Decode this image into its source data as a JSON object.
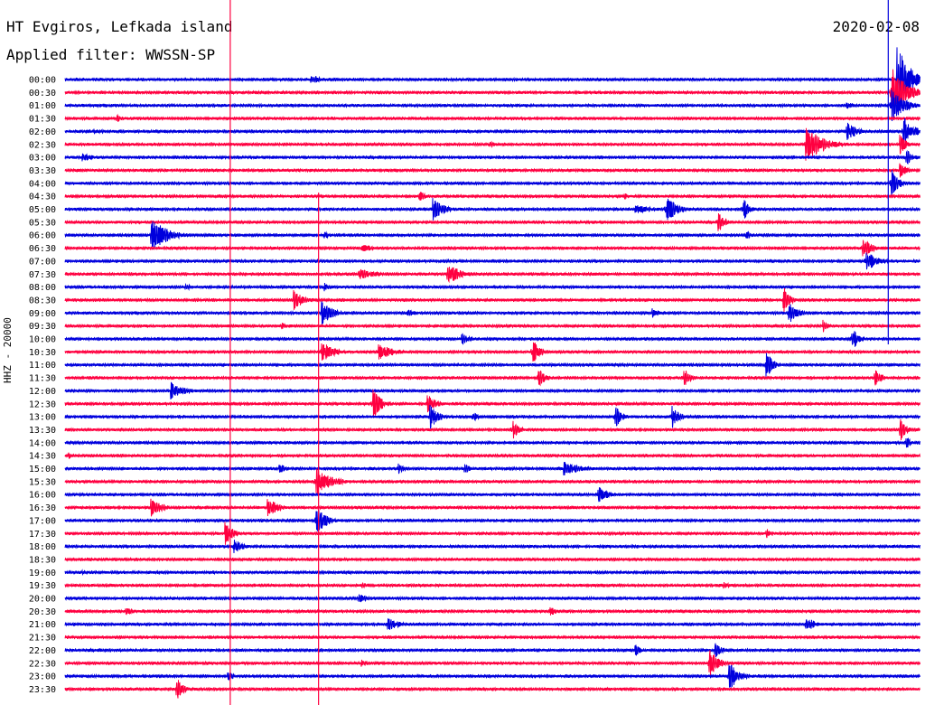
{
  "header": {
    "title": "HT Evgiros, Lefkada island",
    "subtitle": "Applied filter: WWSSN-SP",
    "date": "2020-02-08",
    "channel": "HHZ - 20000"
  },
  "colors": {
    "even_trace": "#0000dd",
    "odd_trace": "#ff0040"
  },
  "chart_data": {
    "type": "line",
    "title": "HT Evgiros, Lefkada island",
    "subtitle": "Applied filter: WWSSN-SP",
    "date": "2020-02-08",
    "ylabel": "HHZ - 20000",
    "row_labels": [
      "00:00",
      "00:30",
      "01:00",
      "01:30",
      "02:00",
      "02:30",
      "03:00",
      "03:30",
      "04:00",
      "04:30",
      "05:00",
      "05:30",
      "06:00",
      "06:30",
      "07:00",
      "07:30",
      "08:00",
      "08:30",
      "09:00",
      "09:30",
      "10:00",
      "10:30",
      "11:00",
      "11:30",
      "12:00",
      "12:30",
      "13:00",
      "13:30",
      "14:00",
      "14:30",
      "15:00",
      "15:30",
      "16:00",
      "16:30",
      "17:00",
      "17:30",
      "18:00",
      "18:30",
      "19:00",
      "19:30",
      "20:00",
      "20:30",
      "21:00",
      "21:30",
      "22:00",
      "22:30",
      "23:00",
      "23:30"
    ],
    "row_minutes": 30,
    "x_range_minutes": [
      0,
      30
    ],
    "grid": false,
    "events": [
      {
        "row": 0,
        "minute": 8.6,
        "amp": 6,
        "dur": 1
      },
      {
        "row": 0,
        "minute": 29.2,
        "amp": 40,
        "dur": 1.2
      },
      {
        "row": 1,
        "minute": 29.0,
        "amp": 30,
        "dur": 1.4
      },
      {
        "row": 2,
        "minute": 27.4,
        "amp": 4,
        "dur": 1.2
      },
      {
        "row": 2,
        "minute": 29.0,
        "amp": 20,
        "dur": 1.2
      },
      {
        "row": 3,
        "minute": 1.8,
        "amp": 5,
        "dur": 0.5
      },
      {
        "row": 4,
        "minute": 1.0,
        "amp": 3,
        "dur": 2
      },
      {
        "row": 4,
        "minute": 27.4,
        "amp": 12,
        "dur": 1
      },
      {
        "row": 4,
        "minute": 29.4,
        "amp": 18,
        "dur": 1
      },
      {
        "row": 5,
        "minute": 14.9,
        "amp": 5,
        "dur": 0.5
      },
      {
        "row": 5,
        "minute": 26.0,
        "amp": 22,
        "dur": 1.5
      },
      {
        "row": 5,
        "minute": 29.3,
        "amp": 12,
        "dur": 0.6
      },
      {
        "row": 6,
        "minute": 0.6,
        "amp": 5,
        "dur": 1.2
      },
      {
        "row": 6,
        "minute": 29.5,
        "amp": 10,
        "dur": 0.8
      },
      {
        "row": 7,
        "minute": 29.3,
        "amp": 8,
        "dur": 0.8
      },
      {
        "row": 8,
        "minute": 29.0,
        "amp": 20,
        "dur": 0.6
      },
      {
        "row": 9,
        "minute": 12.4,
        "amp": 8,
        "dur": 0.6
      },
      {
        "row": 9,
        "minute": 19.6,
        "amp": 5,
        "dur": 0.4
      },
      {
        "row": 10,
        "minute": 12.9,
        "amp": 14,
        "dur": 1
      },
      {
        "row": 10,
        "minute": 20.0,
        "amp": 5,
        "dur": 2
      },
      {
        "row": 10,
        "minute": 21.1,
        "amp": 16,
        "dur": 1
      },
      {
        "row": 10,
        "minute": 23.8,
        "amp": 14,
        "dur": 0.6
      },
      {
        "row": 11,
        "minute": 22.9,
        "amp": 14,
        "dur": 0.6
      },
      {
        "row": 12,
        "minute": 3.0,
        "amp": 20,
        "dur": 1.6
      },
      {
        "row": 12,
        "minute": 9.1,
        "amp": 5,
        "dur": 0.6
      },
      {
        "row": 12,
        "minute": 23.9,
        "amp": 5,
        "dur": 0.6
      },
      {
        "row": 13,
        "minute": 10.4,
        "amp": 4,
        "dur": 2
      },
      {
        "row": 13,
        "minute": 28.0,
        "amp": 12,
        "dur": 0.8
      },
      {
        "row": 14,
        "minute": 28.1,
        "amp": 12,
        "dur": 1.2
      },
      {
        "row": 15,
        "minute": 10.3,
        "amp": 6,
        "dur": 2
      },
      {
        "row": 15,
        "minute": 13.4,
        "amp": 14,
        "dur": 1.2
      },
      {
        "row": 16,
        "minute": 4.2,
        "amp": 5,
        "dur": 0.6
      },
      {
        "row": 16,
        "minute": 9.1,
        "amp": 5,
        "dur": 0.6
      },
      {
        "row": 17,
        "minute": 8.0,
        "amp": 12,
        "dur": 1
      },
      {
        "row": 17,
        "minute": 25.2,
        "amp": 16,
        "dur": 0.6
      },
      {
        "row": 18,
        "minute": 9.0,
        "amp": 14,
        "dur": 1
      },
      {
        "row": 18,
        "minute": 12.0,
        "amp": 6,
        "dur": 0.8
      },
      {
        "row": 18,
        "minute": 20.6,
        "amp": 6,
        "dur": 0.8
      },
      {
        "row": 18,
        "minute": 25.4,
        "amp": 14,
        "dur": 0.8
      },
      {
        "row": 19,
        "minute": 7.6,
        "amp": 4,
        "dur": 0.6
      },
      {
        "row": 19,
        "minute": 26.6,
        "amp": 8,
        "dur": 0.6
      },
      {
        "row": 20,
        "minute": 13.9,
        "amp": 8,
        "dur": 0.8
      },
      {
        "row": 20,
        "minute": 27.6,
        "amp": 16,
        "dur": 0.6
      },
      {
        "row": 21,
        "minute": 9.0,
        "amp": 12,
        "dur": 1.2
      },
      {
        "row": 21,
        "minute": 11.0,
        "amp": 10,
        "dur": 1.4
      },
      {
        "row": 21,
        "minute": 16.4,
        "amp": 16,
        "dur": 0.6
      },
      {
        "row": 22,
        "minute": 24.6,
        "amp": 18,
        "dur": 0.6
      },
      {
        "row": 23,
        "minute": 16.6,
        "amp": 12,
        "dur": 0.6
      },
      {
        "row": 23,
        "minute": 21.7,
        "amp": 12,
        "dur": 0.6
      },
      {
        "row": 23,
        "minute": 28.4,
        "amp": 12,
        "dur": 0.6
      },
      {
        "row": 24,
        "minute": 3.7,
        "amp": 10,
        "dur": 1.4
      },
      {
        "row": 25,
        "minute": 10.8,
        "amp": 18,
        "dur": 0.8
      },
      {
        "row": 25,
        "minute": 12.7,
        "amp": 12,
        "dur": 0.8
      },
      {
        "row": 26,
        "minute": 12.8,
        "amp": 14,
        "dur": 0.8
      },
      {
        "row": 26,
        "minute": 14.3,
        "amp": 6,
        "dur": 0.6
      },
      {
        "row": 26,
        "minute": 19.3,
        "amp": 14,
        "dur": 0.6
      },
      {
        "row": 26,
        "minute": 21.3,
        "amp": 14,
        "dur": 0.6
      },
      {
        "row": 27,
        "minute": 15.7,
        "amp": 12,
        "dur": 0.6
      },
      {
        "row": 27,
        "minute": 29.3,
        "amp": 14,
        "dur": 0.6
      },
      {
        "row": 28,
        "minute": 29.5,
        "amp": 10,
        "dur": 0.4
      },
      {
        "row": 29,
        "minute": 0.1,
        "amp": 5,
        "dur": 0.4
      },
      {
        "row": 30,
        "minute": 7.5,
        "amp": 6,
        "dur": 0.8
      },
      {
        "row": 30,
        "minute": 11.7,
        "amp": 6,
        "dur": 0.6
      },
      {
        "row": 30,
        "minute": 14.0,
        "amp": 6,
        "dur": 0.6
      },
      {
        "row": 30,
        "minute": 17.5,
        "amp": 8,
        "dur": 1.8
      },
      {
        "row": 31,
        "minute": 8.8,
        "amp": 16,
        "dur": 1.5
      },
      {
        "row": 32,
        "minute": 18.7,
        "amp": 10,
        "dur": 1.0
      },
      {
        "row": 33,
        "minute": 3.0,
        "amp": 12,
        "dur": 1.0
      },
      {
        "row": 33,
        "minute": 7.1,
        "amp": 12,
        "dur": 1.0
      },
      {
        "row": 34,
        "minute": 8.8,
        "amp": 16,
        "dur": 1.0
      },
      {
        "row": 35,
        "minute": 5.6,
        "amp": 14,
        "dur": 0.8
      },
      {
        "row": 35,
        "minute": 24.6,
        "amp": 6,
        "dur": 0.6
      },
      {
        "row": 36,
        "minute": 5.9,
        "amp": 10,
        "dur": 0.8
      },
      {
        "row": 38,
        "minute": 0.6,
        "amp": 3,
        "dur": 0.5
      },
      {
        "row": 39,
        "minute": 10.4,
        "amp": 4,
        "dur": 0.5
      },
      {
        "row": 39,
        "minute": 23.1,
        "amp": 4,
        "dur": 0.8
      },
      {
        "row": 40,
        "minute": 10.3,
        "amp": 6,
        "dur": 0.8
      },
      {
        "row": 41,
        "minute": 2.1,
        "amp": 6,
        "dur": 0.8
      },
      {
        "row": 41,
        "minute": 17.0,
        "amp": 10,
        "dur": 0.4
      },
      {
        "row": 42,
        "minute": 11.3,
        "amp": 8,
        "dur": 1.2
      },
      {
        "row": 42,
        "minute": 26.0,
        "amp": 10,
        "dur": 0.8
      },
      {
        "row": 44,
        "minute": 20.0,
        "amp": 8,
        "dur": 0.5
      },
      {
        "row": 44,
        "minute": 22.8,
        "amp": 10,
        "dur": 0.6
      },
      {
        "row": 45,
        "minute": 22.6,
        "amp": 18,
        "dur": 0.8
      },
      {
        "row": 45,
        "minute": 10.4,
        "amp": 4,
        "dur": 0.8
      },
      {
        "row": 46,
        "minute": 5.7,
        "amp": 6,
        "dur": 0.6
      },
      {
        "row": 46,
        "minute": 23.3,
        "amp": 16,
        "dur": 1.0
      },
      {
        "row": 47,
        "minute": 3.9,
        "amp": 14,
        "dur": 0.6
      }
    ],
    "long_spikes": [
      {
        "minute": 5.8,
        "row_from": 0,
        "row_to": 48,
        "color": "odd"
      },
      {
        "minute": 8.9,
        "row_from": 9,
        "row_to": 48,
        "color": "odd"
      },
      {
        "minute": 28.9,
        "row_from": 0,
        "row_to": 20,
        "color": "even"
      }
    ]
  }
}
